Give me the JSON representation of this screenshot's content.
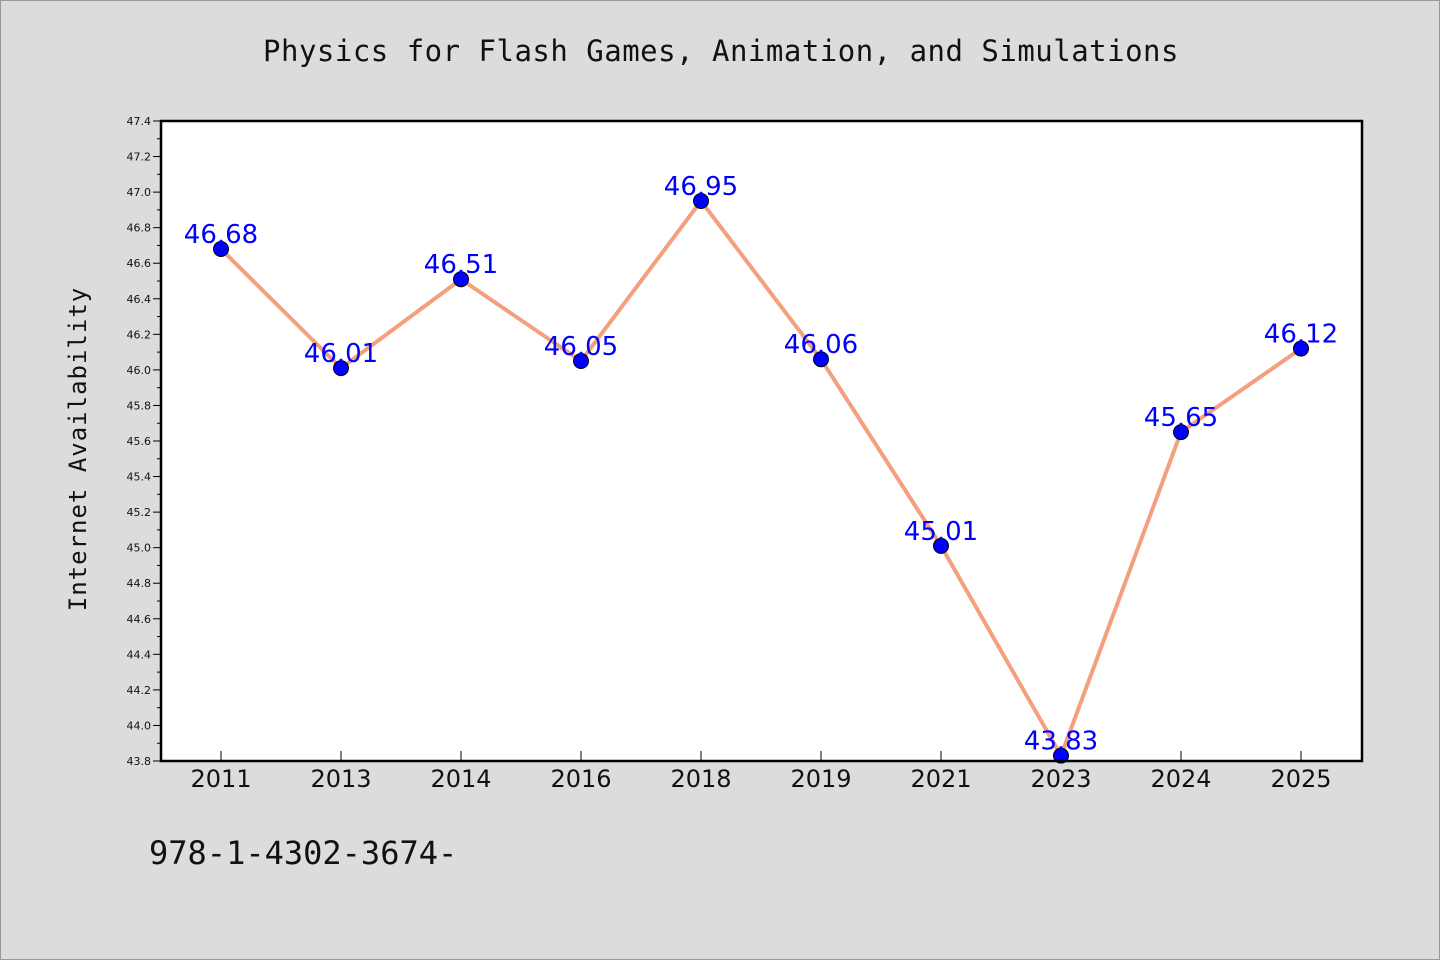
{
  "chart_data": {
    "type": "line",
    "title": "Physics for Flash Games, Animation, and Simulations",
    "xlabel": "",
    "ylabel": "Internet Availability",
    "categories": [
      "2011",
      "2013",
      "2014",
      "2016",
      "2018",
      "2019",
      "2021",
      "2023",
      "2024",
      "2025"
    ],
    "series": [
      {
        "values": [
          46.68,
          46.01,
          46.51,
          46.05,
          46.95,
          46.06,
          45.01,
          43.83,
          45.65,
          46.12
        ]
      }
    ],
    "data_labels": [
      "46.68",
      "46.01",
      "46.51",
      "46.05",
      "46.95",
      "46.06",
      "45.01",
      "43.83",
      "45.65",
      "46.12"
    ],
    "ylim": [
      43.8,
      47.4
    ],
    "y_ticks": [
      "43.8",
      "44.0",
      "44.2",
      "44.4",
      "44.6",
      "44.8",
      "45.0",
      "45.2",
      "45.4",
      "45.6",
      "45.8",
      "46.0",
      "46.2",
      "46.4",
      "46.6",
      "46.8",
      "47.0",
      "47.2",
      "47.4"
    ],
    "grid": false,
    "colors": {
      "line": "#f4a07e",
      "marker": "#0000ff",
      "label": "#0000ff",
      "plot_background": "#ffffff",
      "page_background": "#dcdcdc"
    }
  },
  "footer": {
    "code": "978-1-4302-3674-"
  }
}
